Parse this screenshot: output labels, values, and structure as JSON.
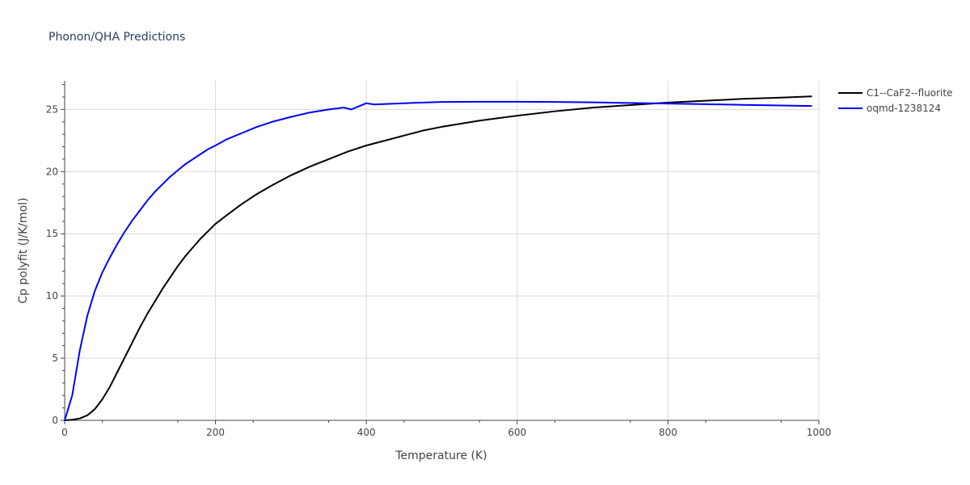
{
  "chart_data": {
    "type": "line",
    "title": "Phonon/QHA Predictions",
    "xlabel": "Temperature (K)",
    "ylabel": "Cp polyfit (J/K/mol)",
    "xlim": [
      0,
      1000
    ],
    "ylim": [
      0,
      27.3
    ],
    "x_ticks": [
      0,
      200,
      400,
      600,
      800,
      1000
    ],
    "y_ticks": [
      0,
      5,
      10,
      15,
      20,
      25
    ],
    "grid": true,
    "legend_position": "top-right",
    "series": [
      {
        "name": "C1--CaF2--fluorite",
        "color": "#000000",
        "x": [
          0,
          10,
          20,
          30,
          40,
          50,
          60,
          70,
          80,
          90,
          100,
          110,
          120,
          130,
          140,
          150,
          160,
          170,
          180,
          190,
          200,
          215,
          235,
          255,
          275,
          300,
          325,
          350,
          375,
          400,
          425,
          450,
          475,
          500,
          550,
          600,
          650,
          700,
          750,
          800,
          850,
          900,
          950,
          990
        ],
        "y": [
          0,
          0.05,
          0.15,
          0.4,
          0.9,
          1.7,
          2.7,
          3.9,
          5.1,
          6.3,
          7.5,
          8.6,
          9.6,
          10.6,
          11.5,
          12.4,
          13.2,
          13.9,
          14.6,
          15.2,
          15.8,
          16.5,
          17.4,
          18.2,
          18.9,
          19.7,
          20.4,
          21.0,
          21.6,
          22.1,
          22.5,
          22.9,
          23.3,
          23.6,
          24.1,
          24.5,
          24.85,
          25.15,
          25.35,
          25.55,
          25.7,
          25.85,
          25.95,
          26.05
        ]
      },
      {
        "name": "oqmd-1238124",
        "color": "#0000ff",
        "x": [
          0,
          10,
          20,
          30,
          40,
          50,
          60,
          70,
          80,
          90,
          100,
          110,
          120,
          130,
          140,
          150,
          160,
          170,
          180,
          190,
          200,
          215,
          235,
          255,
          275,
          300,
          325,
          350,
          370,
          380,
          390,
          400,
          410,
          450,
          500,
          550,
          600,
          650,
          700,
          750,
          800,
          850,
          900,
          950,
          990
        ],
        "y": [
          0,
          2.0,
          5.6,
          8.4,
          10.4,
          11.9,
          13.1,
          14.2,
          15.2,
          16.1,
          16.9,
          17.7,
          18.4,
          19.0,
          19.6,
          20.1,
          20.6,
          21.0,
          21.4,
          21.8,
          22.1,
          22.6,
          23.1,
          23.6,
          24.0,
          24.4,
          24.75,
          25.0,
          25.15,
          25.0,
          25.25,
          25.5,
          25.4,
          25.5,
          25.6,
          25.62,
          25.62,
          25.6,
          25.57,
          25.52,
          25.47,
          25.42,
          25.37,
          25.32,
          25.28
        ]
      }
    ]
  }
}
